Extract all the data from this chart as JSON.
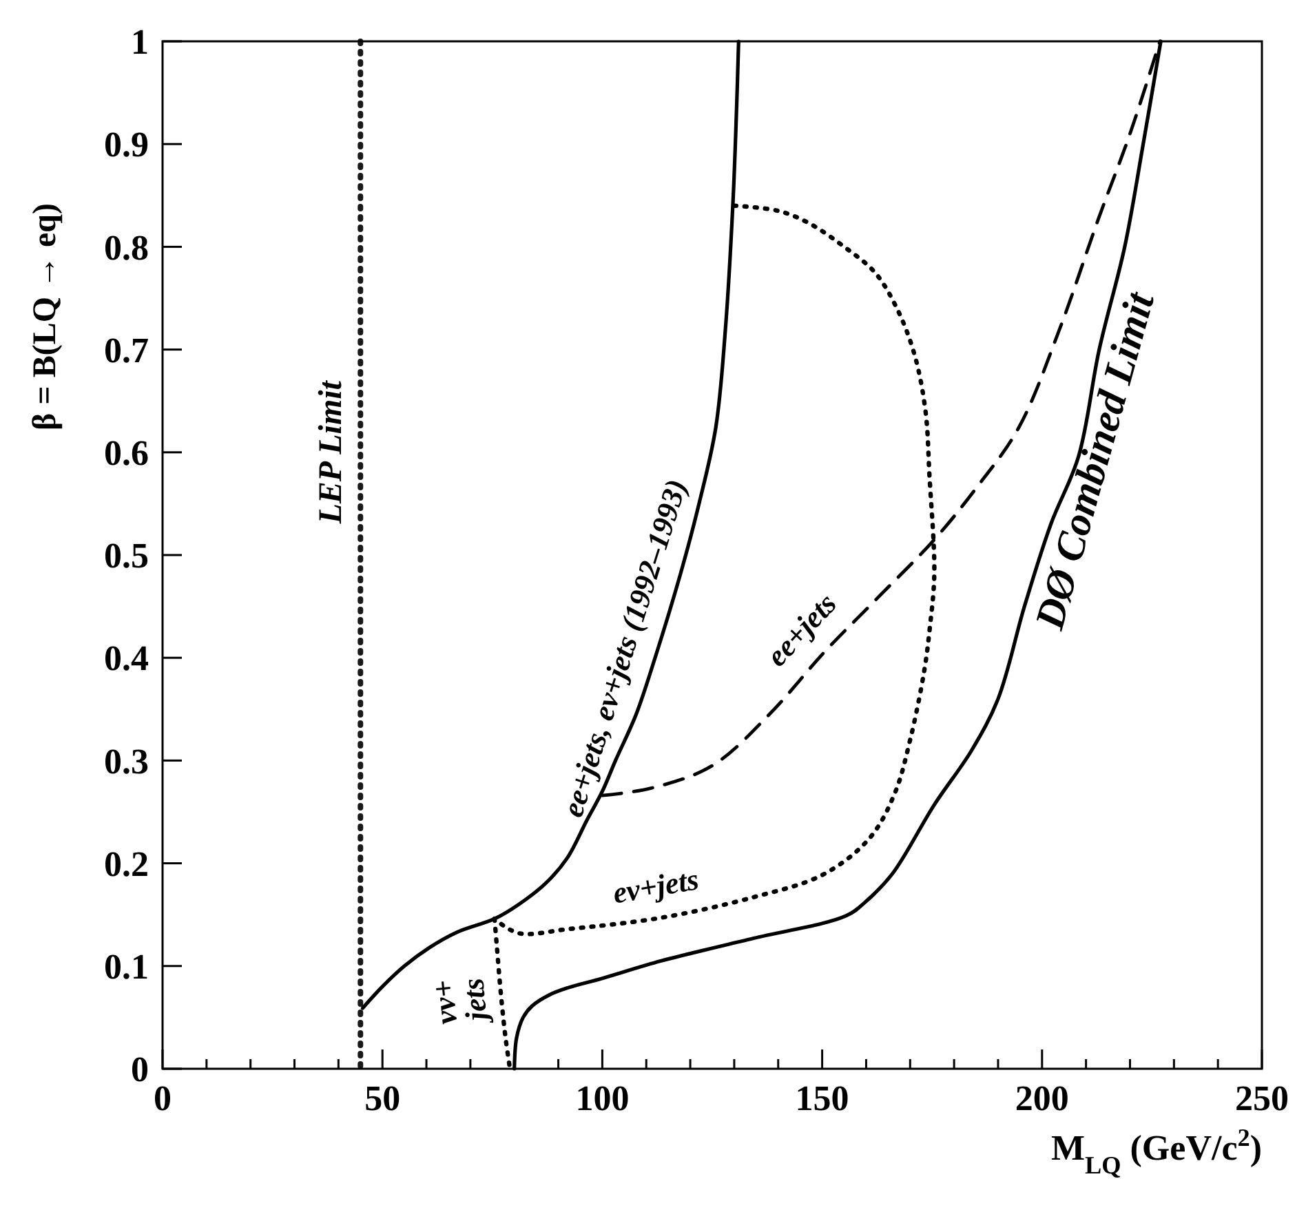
{
  "chart_data": {
    "type": "line",
    "xlabel": "M$_{LQ}$ (GeV/c$^{2}$)",
    "ylabel": "β = B(LQ → eq)",
    "xlim": [
      0,
      250
    ],
    "ylim": [
      0,
      1
    ],
    "xticks": [
      0,
      {
        "value": 10,
        "label": null
      },
      {
        "value": 20,
        "label": null
      },
      {
        "value": 30,
        "label": null
      },
      {
        "value": 40,
        "label": null
      },
      50,
      {
        "value": 60,
        "label": null
      },
      {
        "value": 70,
        "label": null
      },
      {
        "value": 80,
        "label": null
      },
      {
        "value": 90,
        "label": null
      },
      100,
      {
        "value": 110,
        "label": null
      },
      {
        "value": 120,
        "label": null
      },
      {
        "value": 130,
        "label": null
      },
      {
        "value": 140,
        "label": null
      },
      150,
      {
        "value": 160,
        "label": null
      },
      {
        "value": 170,
        "label": null
      },
      {
        "value": 180,
        "label": null
      },
      {
        "value": 190,
        "label": null
      },
      200,
      {
        "value": 210,
        "label": null
      },
      {
        "value": 220,
        "label": null
      },
      {
        "value": 230,
        "label": null
      },
      {
        "value": 240,
        "label": null
      },
      250
    ],
    "yticks": [
      0,
      0.1,
      0.2,
      0.3,
      0.4,
      0.5,
      0.6,
      0.7,
      0.8,
      0.9,
      1
    ],
    "grid": false,
    "ref_lines": [
      {
        "axis": "x",
        "value": 45,
        "label": "LEP Limit",
        "color": "#1a1a1a",
        "line_style": "dotted"
      }
    ],
    "series": [
      {
        "name": "ee+jets, eν+jets (1992–1993)",
        "color": "#000000",
        "line_style": "solid",
        "x": [
          45.5,
          50,
          55,
          60.7,
          67,
          75.5,
          81,
          87,
          92,
          96.5,
          100,
          103,
          107.7,
          112,
          117.8,
          122,
          125.8,
          128,
          129.7,
          130.5,
          131
        ],
        "values": [
          0.059,
          0.08,
          0.1,
          0.118,
          0.133,
          0.146,
          0.16,
          0.18,
          0.205,
          0.242,
          0.27,
          0.3,
          0.345,
          0.4,
          0.482,
          0.55,
          0.624,
          0.72,
          0.842,
          0.93,
          1.0
        ]
      },
      {
        "name": "ee+jets",
        "color": "#000000",
        "line_style": "dashed",
        "x": [
          100,
          111,
          125,
          138,
          150.6,
          163,
          175.5,
          185,
          194.7,
          204,
          212.8,
          220,
          226.8
        ],
        "values": [
          0.266,
          0.273,
          0.295,
          0.345,
          0.406,
          0.46,
          0.515,
          0.565,
          0.624,
          0.72,
          0.827,
          0.91,
          1.0
        ]
      },
      {
        "name": "eν+jets",
        "color": "#000000",
        "line_style": "dotted",
        "x": [
          130,
          140,
          147,
          155,
          162,
          167,
          171,
          173.5,
          174.4,
          175.5,
          174.5,
          173.2,
          170,
          166.5,
          160.7,
          150.2,
          134.4,
          113.4,
          92.3,
          80.9,
          75.5
        ],
        "values": [
          0.84,
          0.835,
          0.823,
          0.8,
          0.775,
          0.74,
          0.695,
          0.64,
          0.577,
          0.482,
          0.43,
          0.387,
          0.32,
          0.268,
          0.224,
          0.189,
          0.167,
          0.147,
          0.136,
          0.132,
          0.146
        ]
      },
      {
        "name": "νν+ jets",
        "color": "#000000",
        "line_style": "dotted",
        "x": [
          75.5,
          76,
          77,
          78,
          79
        ],
        "values": [
          0.146,
          0.12,
          0.07,
          0.03,
          0
        ]
      },
      {
        "name": "DØ Combined Limit",
        "color": "#000000",
        "line_style": "solid",
        "x": [
          80,
          80.5,
          82,
          84,
          88,
          92.3,
          100,
          113.4,
          134.4,
          155.5,
          160,
          166,
          175.5,
          184,
          190,
          196,
          202,
          208.3,
          213,
          218.8,
          223,
          227
        ],
        "values": [
          0,
          0.03,
          0.05,
          0.061,
          0.072,
          0.079,
          0.088,
          0.105,
          0.127,
          0.149,
          0.163,
          0.19,
          0.257,
          0.31,
          0.36,
          0.45,
          0.53,
          0.596,
          0.7,
          0.8,
          0.9,
          1.0
        ]
      }
    ]
  }
}
